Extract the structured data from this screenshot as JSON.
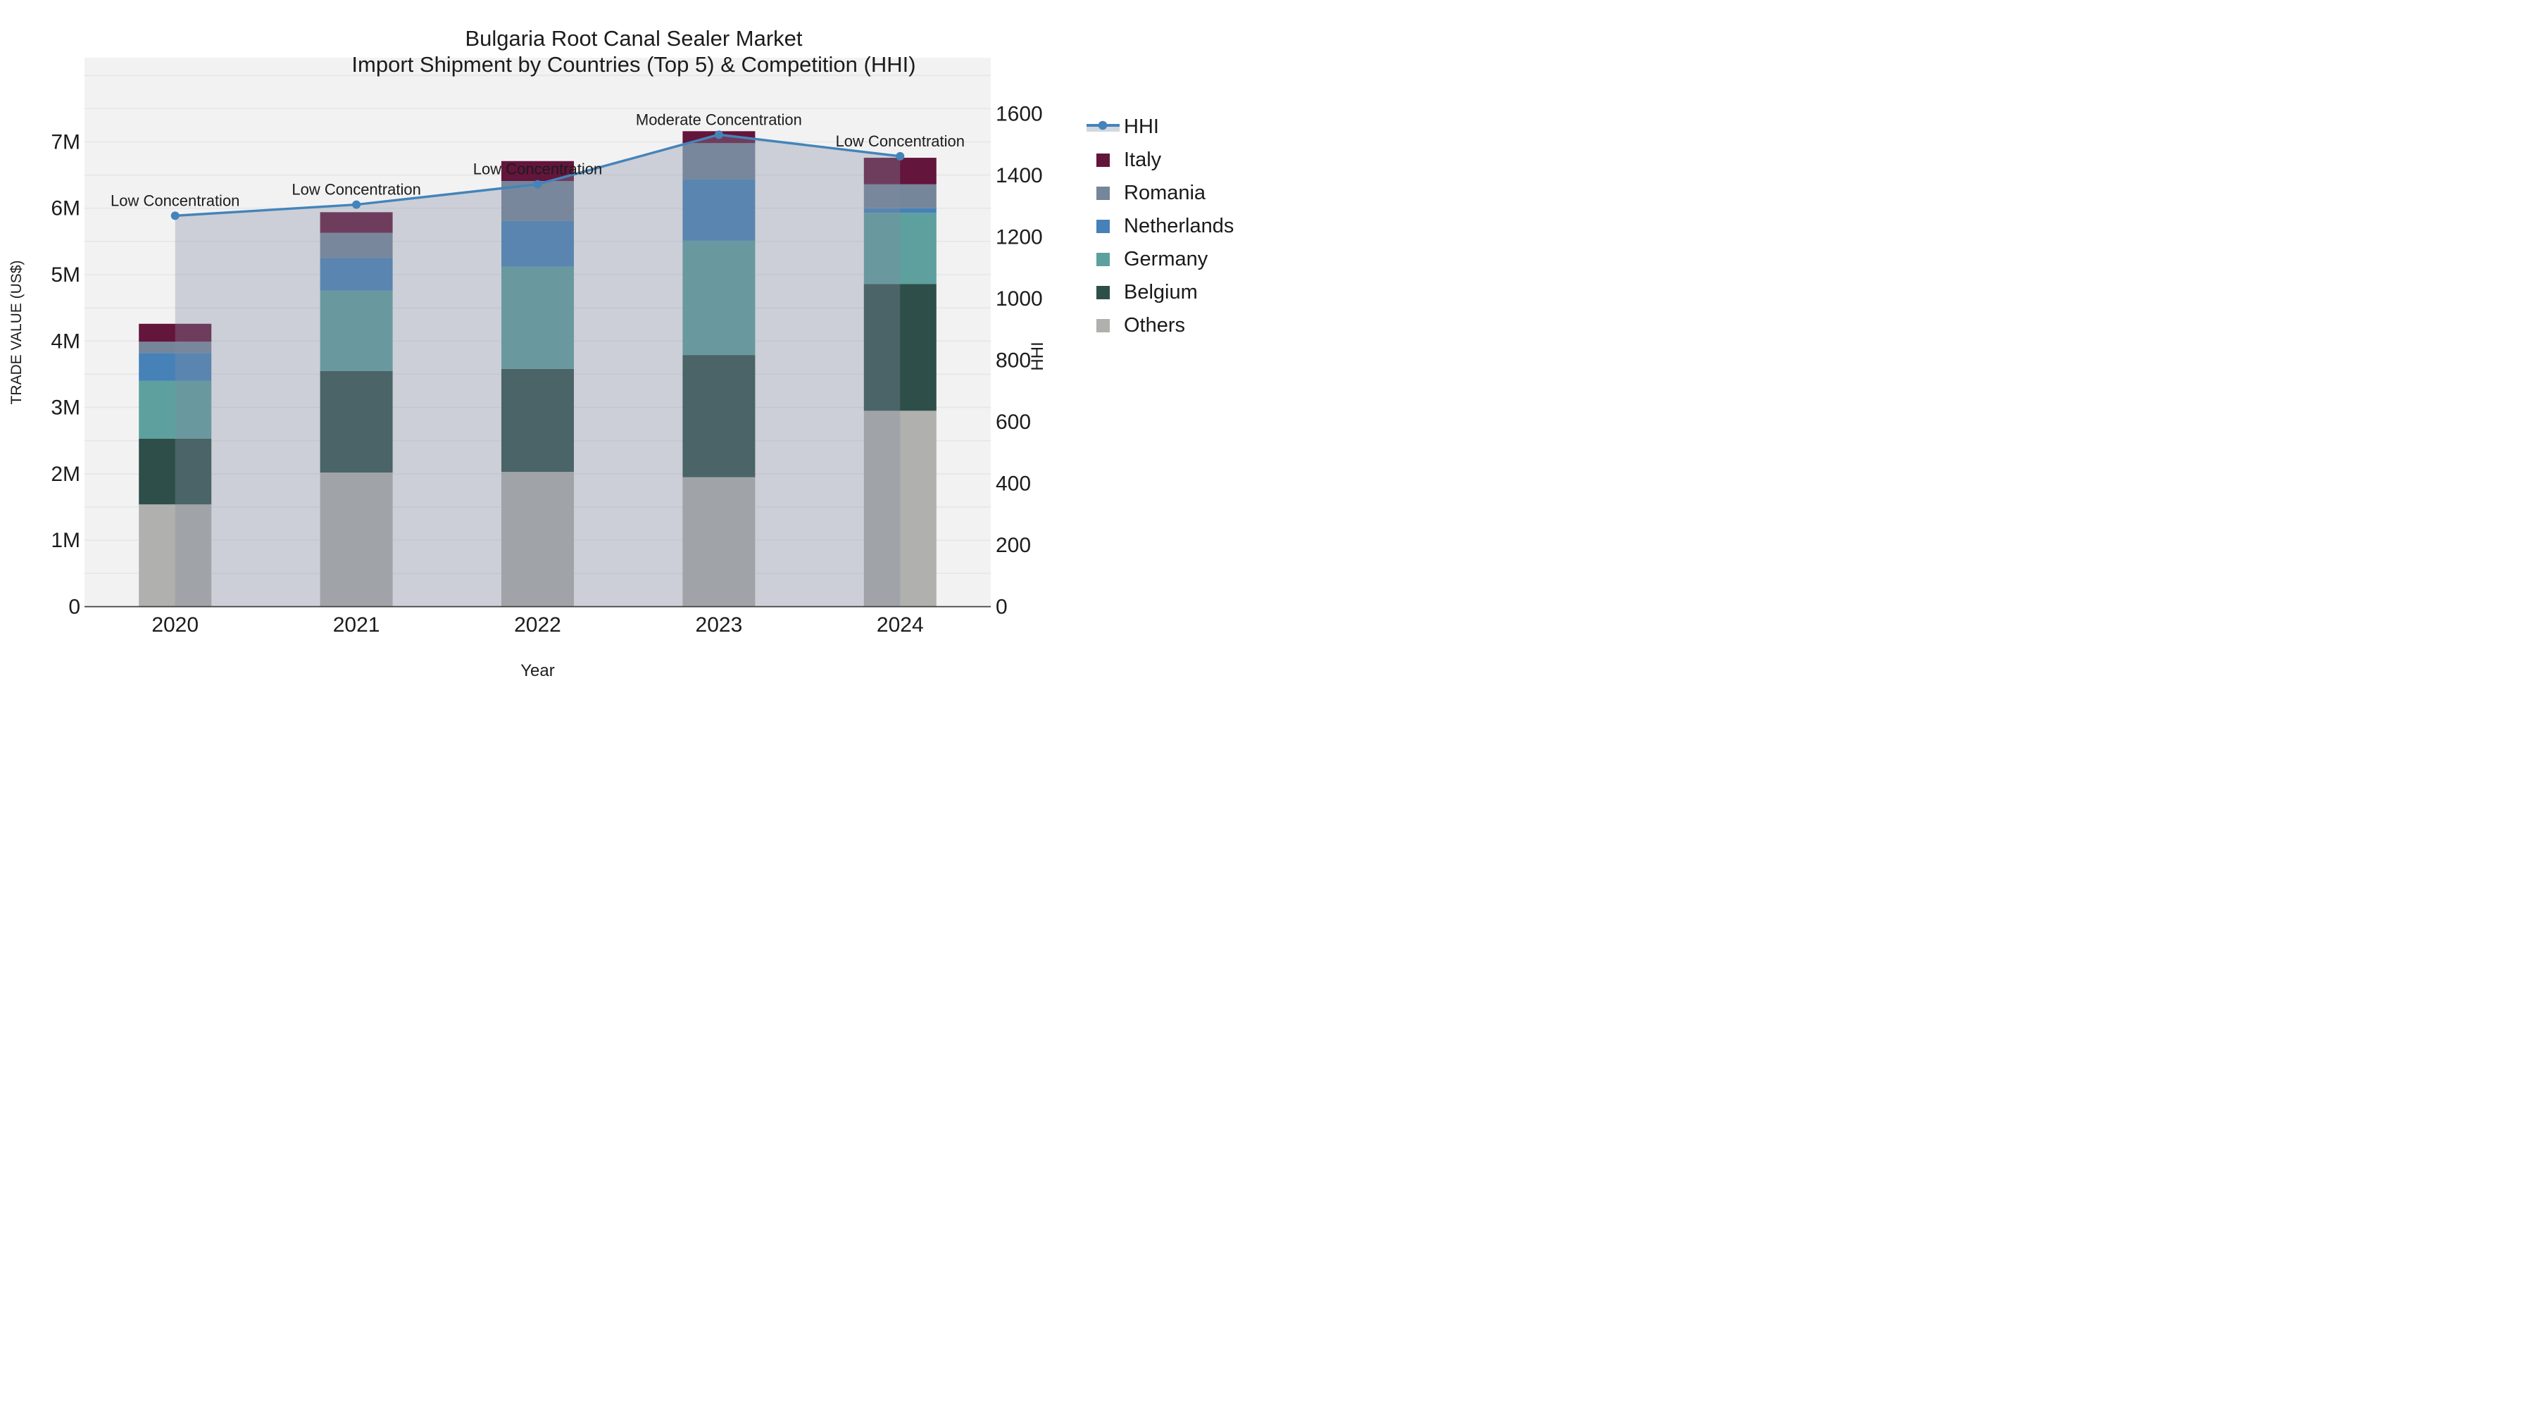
{
  "chart_data": {
    "type": "bar",
    "title": "Bulgaria Root Canal Sealer Market",
    "subtitle": "Import Shipment by Countries (Top 5) & Competition (HHI)",
    "xlabel": "Year",
    "ylabel": "TRADE VALUE (US$)",
    "y2label": "HHI",
    "categories": [
      "2020",
      "2021",
      "2022",
      "2023",
      "2024"
    ],
    "values_unit": "million US$",
    "stack_order_bottom_to_top": [
      "Others",
      "Belgium",
      "Germany",
      "Netherlands",
      "Romania",
      "Italy"
    ],
    "series": [
      {
        "name": "Others",
        "color": "#b0b0ae",
        "values": [
          1.54,
          2.02,
          2.03,
          1.95,
          2.95
        ]
      },
      {
        "name": "Belgium",
        "color": "#2e4f49",
        "values": [
          0.99,
          1.53,
          1.55,
          1.84,
          1.91
        ]
      },
      {
        "name": "Germany",
        "color": "#5da09e",
        "values": [
          0.87,
          1.21,
          1.54,
          1.72,
          1.07
        ]
      },
      {
        "name": "Netherlands",
        "color": "#4681b8",
        "values": [
          0.42,
          0.49,
          0.69,
          0.93,
          0.07
        ]
      },
      {
        "name": "Romania",
        "color": "#75859a",
        "values": [
          0.17,
          0.38,
          0.6,
          0.54,
          0.36
        ]
      },
      {
        "name": "Italy",
        "color": "#64153b",
        "values": [
          0.27,
          0.31,
          0.3,
          0.18,
          0.4
        ]
      }
    ],
    "line_series": {
      "name": "HHI",
      "color": "#4484ba",
      "fill_color": "rgba(130,140,160,0.34)",
      "legend_band_color": "#d3d7de",
      "values": [
        1269,
        1305,
        1371,
        1532,
        1462
      ]
    },
    "annotations": [
      {
        "x": "2020",
        "text": "Low Concentration"
      },
      {
        "x": "2021",
        "text": "Low Concentration"
      },
      {
        "x": "2022",
        "text": "Low Concentration"
      },
      {
        "x": "2023",
        "text": "Moderate Concentration"
      },
      {
        "x": "2024",
        "text": "Low Concentration"
      }
    ],
    "legend_order": [
      "HHI",
      "Italy",
      "Romania",
      "Netherlands",
      "Germany",
      "Belgium",
      "Others"
    ],
    "y_axis": {
      "ticks": [
        "0",
        "1M",
        "2M",
        "3M",
        "4M",
        "5M",
        "6M",
        "7M"
      ],
      "tick_values": [
        0,
        1,
        2,
        3,
        4,
        5,
        6,
        7
      ],
      "max": 8.26,
      "grid_step": 0.5,
      "grid": true
    },
    "y2_axis": {
      "ticks": [
        "0",
        "200",
        "400",
        "600",
        "800",
        "1000",
        "1200",
        "1400",
        "1600"
      ],
      "tick_values": [
        0,
        200,
        400,
        600,
        800,
        1000,
        1200,
        1400,
        1600
      ],
      "max": 1780,
      "grid": false
    },
    "colors": {
      "plot_background": "#f3f2f3",
      "gridline": "#e6e5e7",
      "axis_line": "#3f3f3f",
      "text": "#1c1c1c"
    }
  }
}
